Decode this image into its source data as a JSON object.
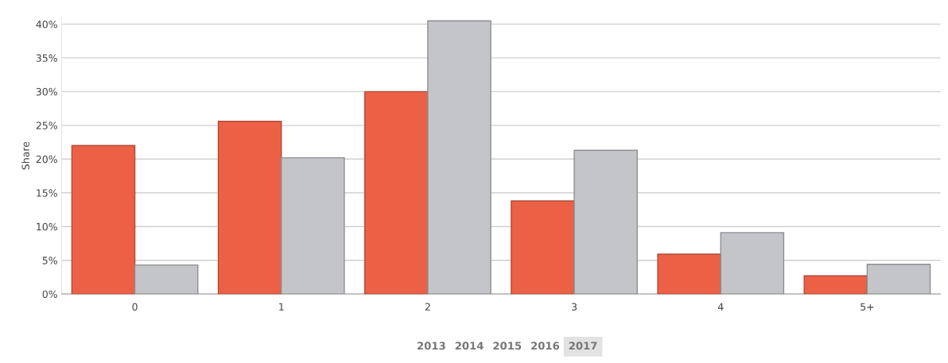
{
  "chart_data": {
    "type": "bar",
    "ylabel": "Share",
    "categories": [
      "0",
      "1",
      "2",
      "3",
      "4",
      "5+"
    ],
    "series": [
      {
        "color": "#ec6146",
        "values": [
          22.0,
          25.6,
          30.0,
          13.8,
          5.9,
          2.7
        ]
      },
      {
        "color": "#c4c5c9",
        "values": [
          4.3,
          20.2,
          40.5,
          21.3,
          9.1,
          4.4
        ]
      }
    ],
    "ylim": [
      0,
      41
    ],
    "yticks": [
      {
        "value": 0,
        "label": "0%"
      },
      {
        "value": 5,
        "label": "5%"
      },
      {
        "value": 10,
        "label": "10%"
      },
      {
        "value": 15,
        "label": "15%"
      },
      {
        "value": 20,
        "label": "20%"
      },
      {
        "value": 25,
        "label": "25%"
      },
      {
        "value": 30,
        "label": "30%"
      },
      {
        "value": 35,
        "label": "35%"
      },
      {
        "value": 40,
        "label": "40%"
      }
    ],
    "grid": "y",
    "legend": false,
    "annotations": [
      "2013",
      "2014",
      "2015",
      "2016",
      "2017"
    ]
  }
}
